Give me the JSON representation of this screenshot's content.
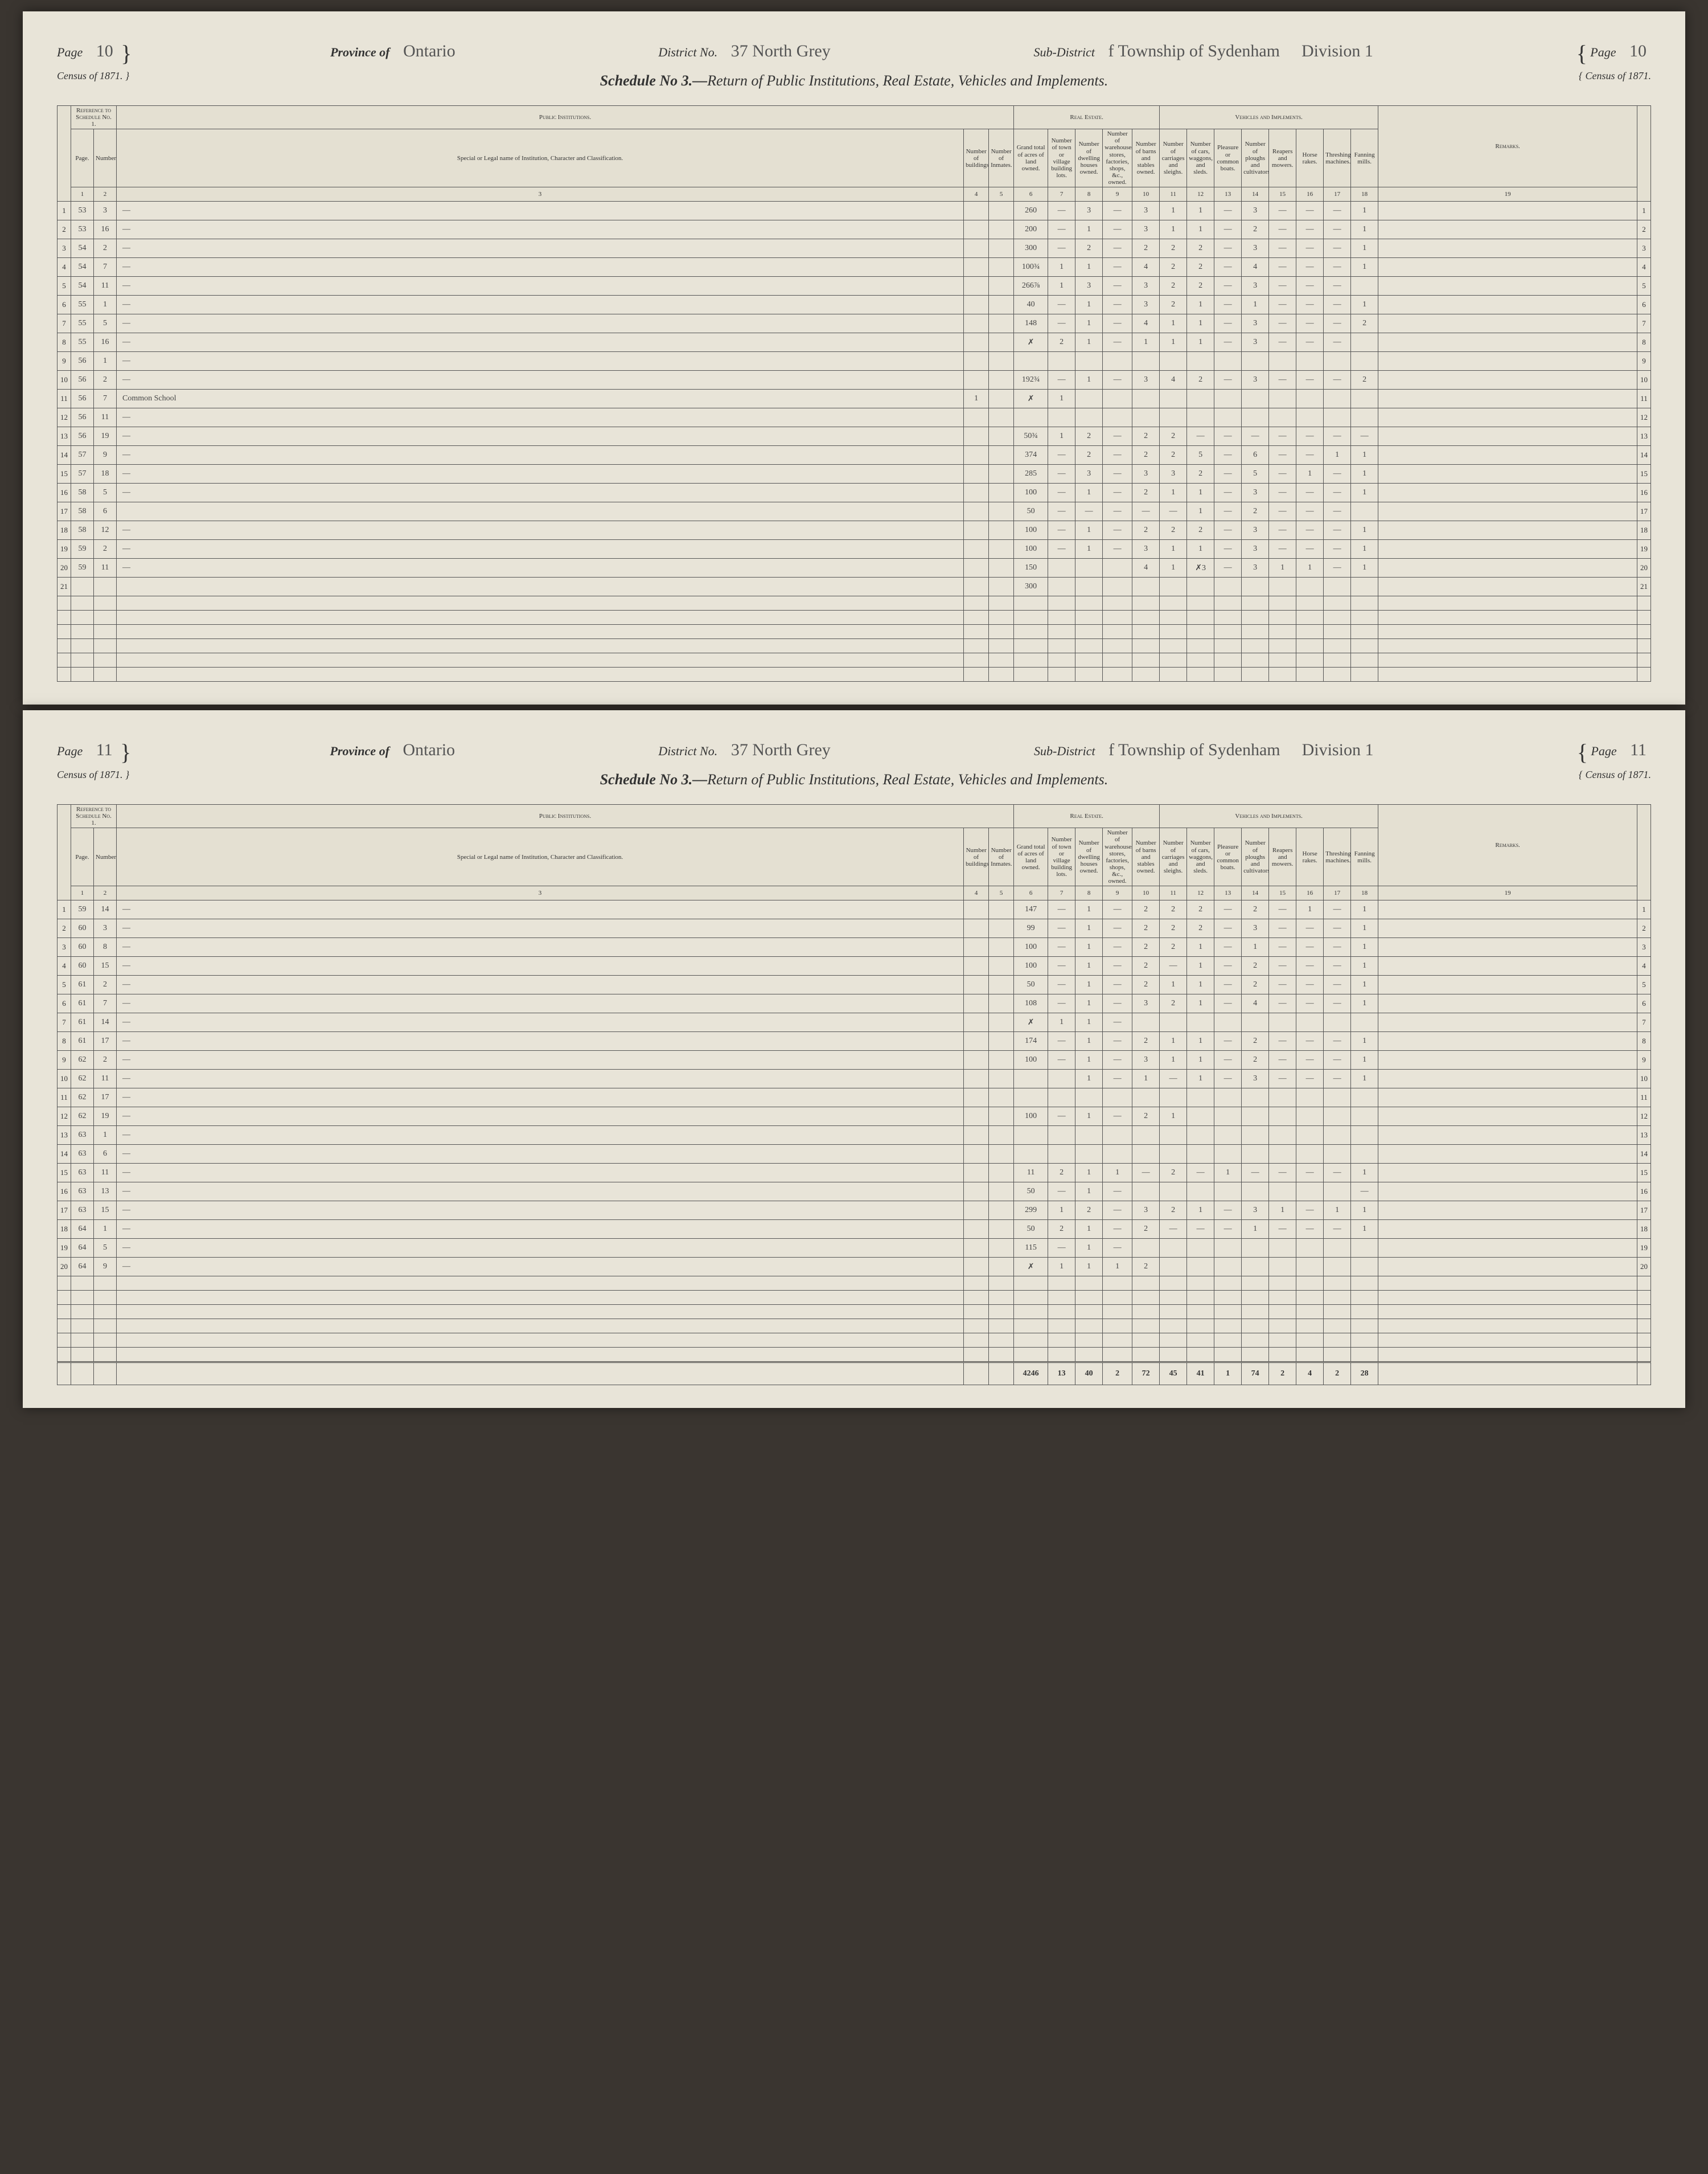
{
  "doc": {
    "census_label": "Census of 1871.",
    "schedule_title_prefix": "Schedule No 3.—",
    "schedule_title": "Return of Public Institutions, Real Estate, Vehicles and Implements.",
    "province_label": "Province of",
    "district_label": "District No.",
    "subdistrict_label": "Sub-District",
    "page_label": "Page"
  },
  "columns": {
    "sections": {
      "ref": "Reference to Schedule No. 1.",
      "pub": "Public Institutions.",
      "real": "Real Estate.",
      "veh": "Vehicles and Implements.",
      "rem": "Remarks."
    },
    "heads": [
      "Page.",
      "Number.",
      "Special or Legal name of Institution, Character and Classification.",
      "Number of buildings.",
      "Number of Inmates.",
      "Grand total of acres of land owned.",
      "Number of town or village building lots.",
      "Number of dwelling houses owned.",
      "Number of warehouses, stores, factories, shops, &c., owned.",
      "Number of barns and stables owned.",
      "Number of carriages and sleighs.",
      "Number of cars, waggons, and sleds.",
      "Pleasure or common boats.",
      "Number of ploughs and cultivators.",
      "Reapers and mowers.",
      "Horse rakes.",
      "Threshing machines.",
      "Fanning mills."
    ],
    "nums": [
      "1",
      "2",
      "3",
      "4",
      "5",
      "6",
      "7",
      "8",
      "9",
      "10",
      "11",
      "12",
      "13",
      "14",
      "15",
      "16",
      "17",
      "18",
      "19"
    ]
  },
  "pages": [
    {
      "page_no": "10",
      "province": "Ontario",
      "district": "37 North Grey",
      "subdistrict": "f  Township of Sydenham",
      "division": "Division 1",
      "rows": [
        {
          "n": 1,
          "p": "53",
          "num": "3",
          "inst": "—",
          "c": [
            "",
            "",
            "260",
            "—",
            "3",
            "—",
            "3",
            "1",
            "1",
            "—",
            "3",
            "—",
            "—",
            "—",
            "1"
          ]
        },
        {
          "n": 2,
          "p": "53",
          "num": "16",
          "inst": "—",
          "c": [
            "",
            "",
            "200",
            "—",
            "1",
            "—",
            "3",
            "1",
            "1",
            "—",
            "2",
            "—",
            "—",
            "—",
            "1"
          ]
        },
        {
          "n": 3,
          "p": "54",
          "num": "2",
          "inst": "—",
          "c": [
            "",
            "",
            "300",
            "—",
            "2",
            "—",
            "2",
            "2",
            "2",
            "—",
            "3",
            "—",
            "—",
            "—",
            "1"
          ]
        },
        {
          "n": 4,
          "p": "54",
          "num": "7",
          "inst": "—",
          "c": [
            "",
            "",
            "100¾",
            "1",
            "1",
            "—",
            "4",
            "2",
            "2",
            "—",
            "4",
            "—",
            "—",
            "—",
            "1"
          ]
        },
        {
          "n": 5,
          "p": "54",
          "num": "11",
          "inst": "—",
          "c": [
            "",
            "",
            "266⅞",
            "1",
            "3",
            "—",
            "3",
            "2",
            "2",
            "—",
            "3",
            "—",
            "—",
            "—",
            ""
          ]
        },
        {
          "n": 6,
          "p": "55",
          "num": "1",
          "inst": "—",
          "c": [
            "",
            "",
            "40",
            "—",
            "1",
            "—",
            "3",
            "2",
            "1",
            "—",
            "1",
            "—",
            "—",
            "—",
            "1"
          ]
        },
        {
          "n": 7,
          "p": "55",
          "num": "5",
          "inst": "—",
          "c": [
            "",
            "",
            "148",
            "—",
            "1",
            "—",
            "4",
            "1",
            "1",
            "—",
            "3",
            "—",
            "—",
            "—",
            "2"
          ]
        },
        {
          "n": 8,
          "p": "55",
          "num": "16",
          "inst": "—",
          "c": [
            "",
            "",
            "✗",
            "2",
            "1",
            "—",
            "1",
            "1",
            "1",
            "—",
            "3",
            "—",
            "—",
            "—",
            ""
          ]
        },
        {
          "n": 9,
          "p": "56",
          "num": "1",
          "inst": "—",
          "c": [
            "",
            "",
            "",
            "",
            "",
            "",
            "",
            "",
            "",
            "",
            "",
            "",
            "",
            "",
            ""
          ]
        },
        {
          "n": 10,
          "p": "56",
          "num": "2",
          "inst": "—",
          "c": [
            "",
            "",
            "192¾",
            "—",
            "1",
            "—",
            "3",
            "4",
            "2",
            "—",
            "3",
            "—",
            "—",
            "—",
            "2"
          ]
        },
        {
          "n": 11,
          "p": "56",
          "num": "7",
          "inst": "Common School",
          "c": [
            "1",
            "",
            "✗",
            "1",
            "",
            "",
            "",
            "",
            "",
            "",
            "",
            "",
            "",
            "",
            ""
          ]
        },
        {
          "n": 12,
          "p": "56",
          "num": "11",
          "inst": "—",
          "c": [
            "",
            "",
            "",
            "",
            "",
            "",
            "",
            "",
            "",
            "",
            "",
            "",
            "",
            "",
            ""
          ]
        },
        {
          "n": 13,
          "p": "56",
          "num": "19",
          "inst": "—",
          "c": [
            "",
            "",
            "50¾",
            "1",
            "2",
            "—",
            "2",
            "2",
            "—",
            "—",
            "—",
            "—",
            "—",
            "—",
            "—"
          ]
        },
        {
          "n": 14,
          "p": "57",
          "num": "9",
          "inst": "—",
          "c": [
            "",
            "",
            "374",
            "—",
            "2",
            "—",
            "2",
            "2",
            "5",
            "—",
            "6",
            "—",
            "—",
            "1",
            "1"
          ]
        },
        {
          "n": 15,
          "p": "57",
          "num": "18",
          "inst": "—",
          "c": [
            "",
            "",
            "285",
            "—",
            "3",
            "—",
            "3",
            "3",
            "2",
            "—",
            "5",
            "—",
            "1",
            "—",
            "1"
          ]
        },
        {
          "n": 16,
          "p": "58",
          "num": "5",
          "inst": "—",
          "c": [
            "",
            "",
            "100",
            "—",
            "1",
            "—",
            "2",
            "1",
            "1",
            "—",
            "3",
            "—",
            "—",
            "—",
            "1"
          ]
        },
        {
          "n": 17,
          "p": "58",
          "num": "6",
          "inst": "",
          "c": [
            "",
            "",
            "50",
            "—",
            "—",
            "—",
            "—",
            "—",
            "1",
            "—",
            "2",
            "—",
            "—",
            "—",
            ""
          ]
        },
        {
          "n": 18,
          "p": "58",
          "num": "12",
          "inst": "—",
          "c": [
            "",
            "",
            "100",
            "—",
            "1",
            "—",
            "2",
            "2",
            "2",
            "—",
            "3",
            "—",
            "—",
            "—",
            "1"
          ]
        },
        {
          "n": 19,
          "p": "59",
          "num": "2",
          "inst": "—",
          "c": [
            "",
            "",
            "100",
            "—",
            "1",
            "—",
            "3",
            "1",
            "1",
            "—",
            "3",
            "—",
            "—",
            "—",
            "1"
          ]
        },
        {
          "n": 20,
          "p": "59",
          "num": "11",
          "inst": "—",
          "c": [
            "",
            "",
            "150",
            "",
            "",
            "",
            "4",
            "1",
            "✗3",
            "—",
            "3",
            "1",
            "1",
            "—",
            "1"
          ]
        },
        {
          "n": 21,
          "p": "",
          "num": "",
          "inst": "",
          "c": [
            "",
            "",
            "300",
            "",
            "",
            "",
            "",
            "",
            "",
            "",
            "",
            "",
            "",
            "",
            ""
          ]
        }
      ],
      "totals": null
    },
    {
      "page_no": "11",
      "province": "Ontario",
      "district": "37 North Grey",
      "subdistrict": "f  Township of Sydenham",
      "division": "Division 1",
      "rows": [
        {
          "n": 1,
          "p": "59",
          "num": "14",
          "inst": "—",
          "c": [
            "",
            "",
            "147",
            "—",
            "1",
            "—",
            "2",
            "2",
            "2",
            "—",
            "2",
            "—",
            "1",
            "—",
            "1"
          ]
        },
        {
          "n": 2,
          "p": "60",
          "num": "3",
          "inst": "—",
          "c": [
            "",
            "",
            "99",
            "—",
            "1",
            "—",
            "2",
            "2",
            "2",
            "—",
            "3",
            "—",
            "—",
            "—",
            "1"
          ]
        },
        {
          "n": 3,
          "p": "60",
          "num": "8",
          "inst": "—",
          "c": [
            "",
            "",
            "100",
            "—",
            "1",
            "—",
            "2",
            "2",
            "1",
            "—",
            "1",
            "—",
            "—",
            "—",
            "1"
          ]
        },
        {
          "n": 4,
          "p": "60",
          "num": "15",
          "inst": "—",
          "c": [
            "",
            "",
            "100",
            "—",
            "1",
            "—",
            "2",
            "—",
            "1",
            "—",
            "2",
            "—",
            "—",
            "—",
            "1"
          ]
        },
        {
          "n": 5,
          "p": "61",
          "num": "2",
          "inst": "—",
          "c": [
            "",
            "",
            "50",
            "—",
            "1",
            "—",
            "2",
            "1",
            "1",
            "—",
            "2",
            "—",
            "—",
            "—",
            "1"
          ]
        },
        {
          "n": 6,
          "p": "61",
          "num": "7",
          "inst": "—",
          "c": [
            "",
            "",
            "108",
            "—",
            "1",
            "—",
            "3",
            "2",
            "1",
            "—",
            "4",
            "—",
            "—",
            "—",
            "1"
          ]
        },
        {
          "n": 7,
          "p": "61",
          "num": "14",
          "inst": "—",
          "c": [
            "",
            "",
            "✗",
            "1",
            "1",
            "—",
            "",
            "",
            "",
            "",
            "",
            "",
            "",
            "",
            ""
          ]
        },
        {
          "n": 8,
          "p": "61",
          "num": "17",
          "inst": "—",
          "c": [
            "",
            "",
            "174",
            "—",
            "1",
            "—",
            "2",
            "1",
            "1",
            "—",
            "2",
            "—",
            "—",
            "—",
            "1"
          ]
        },
        {
          "n": 9,
          "p": "62",
          "num": "2",
          "inst": "—",
          "c": [
            "",
            "",
            "100",
            "—",
            "1",
            "—",
            "3",
            "1",
            "1",
            "—",
            "2",
            "—",
            "—",
            "—",
            "1"
          ]
        },
        {
          "n": 10,
          "p": "62",
          "num": "11",
          "inst": "—",
          "c": [
            "",
            "",
            "",
            "",
            "1",
            "—",
            "1",
            "—",
            "1",
            "—",
            "3",
            "—",
            "—",
            "—",
            "1"
          ]
        },
        {
          "n": 11,
          "p": "62",
          "num": "17",
          "inst": "—",
          "c": [
            "",
            "",
            "",
            "",
            "",
            "",
            "",
            "",
            "",
            "",
            "",
            "",
            "",
            "",
            ""
          ]
        },
        {
          "n": 12,
          "p": "62",
          "num": "19",
          "inst": "—",
          "c": [
            "",
            "",
            "100",
            "—",
            "1",
            "—",
            "2",
            "1",
            "",
            "",
            "",
            "",
            "",
            "",
            ""
          ]
        },
        {
          "n": 13,
          "p": "63",
          "num": "1",
          "inst": "—",
          "c": [
            "",
            "",
            "",
            "",
            "",
            "",
            "",
            "",
            "",
            "",
            "",
            "",
            "",
            "",
            ""
          ]
        },
        {
          "n": 14,
          "p": "63",
          "num": "6",
          "inst": "—",
          "c": [
            "",
            "",
            "",
            "",
            "",
            "",
            "",
            "",
            "",
            "",
            "",
            "",
            "",
            "",
            ""
          ]
        },
        {
          "n": 15,
          "p": "63",
          "num": "11",
          "inst": "—",
          "c": [
            "",
            "",
            "11",
            "2",
            "1",
            "1",
            "—",
            "2",
            "—",
            "1",
            "—",
            "—",
            "—",
            "—",
            "1"
          ]
        },
        {
          "n": 16,
          "p": "63",
          "num": "13",
          "inst": "—",
          "c": [
            "",
            "",
            "50",
            "—",
            "1",
            "—",
            "",
            "",
            "",
            "",
            "",
            "",
            "",
            "",
            "—"
          ]
        },
        {
          "n": 17,
          "p": "63",
          "num": "15",
          "inst": "—",
          "c": [
            "",
            "",
            "299",
            "1",
            "2",
            "—",
            "3",
            "2",
            "1",
            "—",
            "3",
            "1",
            "—",
            "1",
            "1"
          ]
        },
        {
          "n": 18,
          "p": "64",
          "num": "1",
          "inst": "—",
          "c": [
            "",
            "",
            "50",
            "2",
            "1",
            "—",
            "2",
            "—",
            "—",
            "—",
            "1",
            "—",
            "—",
            "—",
            "1"
          ]
        },
        {
          "n": 19,
          "p": "64",
          "num": "5",
          "inst": "—",
          "c": [
            "",
            "",
            "115",
            "—",
            "1",
            "—",
            "",
            "",
            "",
            "",
            "",
            "",
            "",
            "",
            ""
          ]
        },
        {
          "n": 20,
          "p": "64",
          "num": "9",
          "inst": "—",
          "c": [
            "",
            "",
            "✗",
            "1",
            "1",
            "1",
            "2",
            "",
            "",
            "",
            "",
            "",
            "",
            "",
            ""
          ]
        }
      ],
      "totals": [
        "",
        "",
        "4246",
        "13",
        "40",
        "2",
        "72",
        "45",
        "41",
        "1",
        "74",
        "2",
        "4",
        "2",
        "28"
      ]
    }
  ]
}
